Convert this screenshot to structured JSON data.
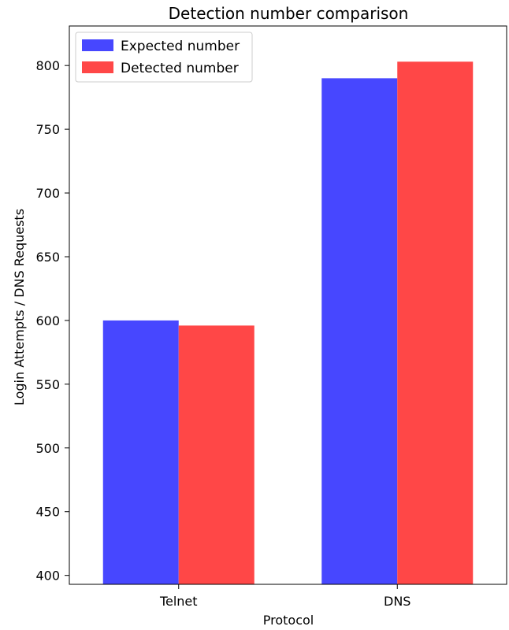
{
  "chart_data": {
    "type": "bar",
    "title": "Detection number comparison",
    "xlabel": "Protocol",
    "ylabel": "Login Attempts / DNS Requests",
    "categories": [
      "Telnet",
      "DNS"
    ],
    "series": [
      {
        "name": "Expected number",
        "values": [
          600,
          790
        ],
        "color": "#4747ff"
      },
      {
        "name": "Detected number",
        "values": [
          596,
          803
        ],
        "color": "#ff4747"
      }
    ],
    "ylim": [
      393,
      831
    ],
    "yticks": [
      400,
      450,
      500,
      550,
      600,
      650,
      700,
      750,
      800
    ],
    "grid": false,
    "legend": "top-left"
  }
}
